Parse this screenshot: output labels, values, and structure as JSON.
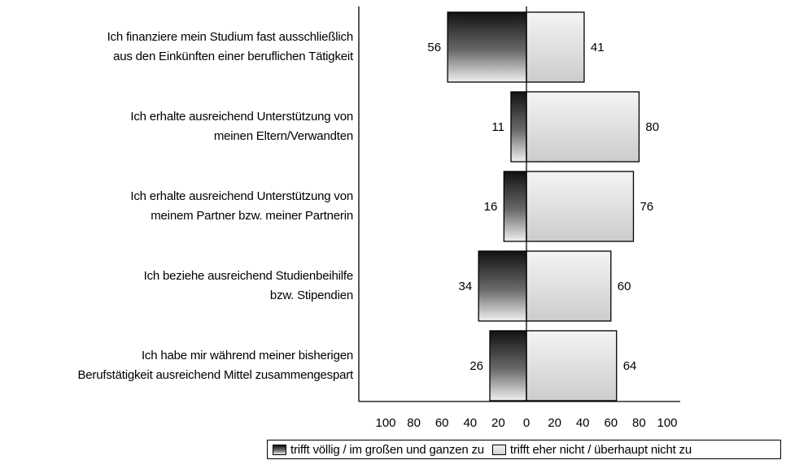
{
  "chart_data": {
    "type": "bar",
    "orientation": "horizontal-diverging",
    "categories": [
      [
        "Ich finanziere mein Studium fast ausschließlich",
        "aus den Einkünften einer beruflichen Tätigkeit"
      ],
      [
        "Ich erhalte ausreichend Unterstützung von",
        "meinen Eltern/Verwandten"
      ],
      [
        "Ich erhalte ausreichend Unterstützung von",
        "meinem Partner bzw. meiner Partnerin"
      ],
      [
        "Ich beziehe ausreichend Studienbeihilfe",
        "bzw. Stipendien"
      ],
      [
        "Ich habe mir während meiner bisherigen",
        "Berufstätigkeit ausreichend Mittel zusammengespart"
      ]
    ],
    "series": [
      {
        "name": "trifft völlig / im großen und ganzen zu",
        "side": "left",
        "values": [
          56,
          11,
          16,
          34,
          26
        ]
      },
      {
        "name": "trifft eher nicht / überhaupt nicht zu",
        "side": "right",
        "values": [
          41,
          80,
          76,
          60,
          64
        ]
      }
    ],
    "xlim": [
      -100,
      100
    ],
    "x_tick_labels": [
      "100",
      "80",
      "60",
      "40",
      "20",
      "0",
      "20",
      "40",
      "60",
      "80",
      "100"
    ],
    "legend_placement": "bottom-right",
    "grid": false,
    "colors": {
      "left_dark": "#111111",
      "left_light": "#eeeeee",
      "right_light": "#f2f2f2",
      "right_dark": "#cfcfcf",
      "stroke": "#000000"
    }
  }
}
